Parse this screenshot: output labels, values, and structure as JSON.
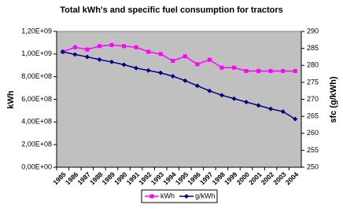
{
  "chart_data": {
    "type": "line",
    "title": "Total kWh's and specific fuel consumption for tractors",
    "y_label": "kWh",
    "y2_label": "sfc (g/kWh)",
    "categories": [
      "1985",
      "1986",
      "1987",
      "1988",
      "1989",
      "1990",
      "1991",
      "1992",
      "1993",
      "1994",
      "1995",
      "1996",
      "1997",
      "1998",
      "1999",
      "2000",
      "2001",
      "2002",
      "2003",
      "2004"
    ],
    "series": [
      {
        "name": "kWh",
        "color": "#ff00ff",
        "marker": "square",
        "values": [
          1020000000,
          1060000000,
          1040000000,
          1070000000,
          1080000000,
          1070000000,
          1060000000,
          1020000000,
          1000000000,
          940000000,
          980000000,
          910000000,
          950000000,
          880000000,
          880000000,
          850000000,
          850000000,
          850000000,
          850000000,
          850000000
        ]
      },
      {
        "name": "g/kWh",
        "color": "#000080",
        "marker": "diamond",
        "axis": "y2",
        "values": [
          284,
          283.2,
          282.5,
          281.7,
          281,
          280.2,
          279.2,
          278.5,
          277.8,
          276.8,
          275.5,
          274,
          272.5,
          271.2,
          270.2,
          269.2,
          268.2,
          267.2,
          266.4,
          264.2
        ]
      }
    ],
    "ylim": [
      0,
      1200000000
    ],
    "yticks": [
      {
        "value": 0,
        "label": "0,00E+00"
      },
      {
        "value": 200000000,
        "label": "2,00E+08"
      },
      {
        "value": 400000000,
        "label": "4,00E+08"
      },
      {
        "value": 600000000,
        "label": "6,00E+08"
      },
      {
        "value": 800000000,
        "label": "8,00E+08"
      },
      {
        "value": 1000000000,
        "label": "1,00E+09"
      },
      {
        "value": 1200000000,
        "label": "1,20E+09"
      }
    ],
    "y2lim": [
      250,
      290
    ],
    "y2ticks": [
      250,
      255,
      260,
      265,
      270,
      275,
      280,
      285,
      290
    ],
    "plot_background": "#c0c0c0",
    "legend": "bottom"
  }
}
